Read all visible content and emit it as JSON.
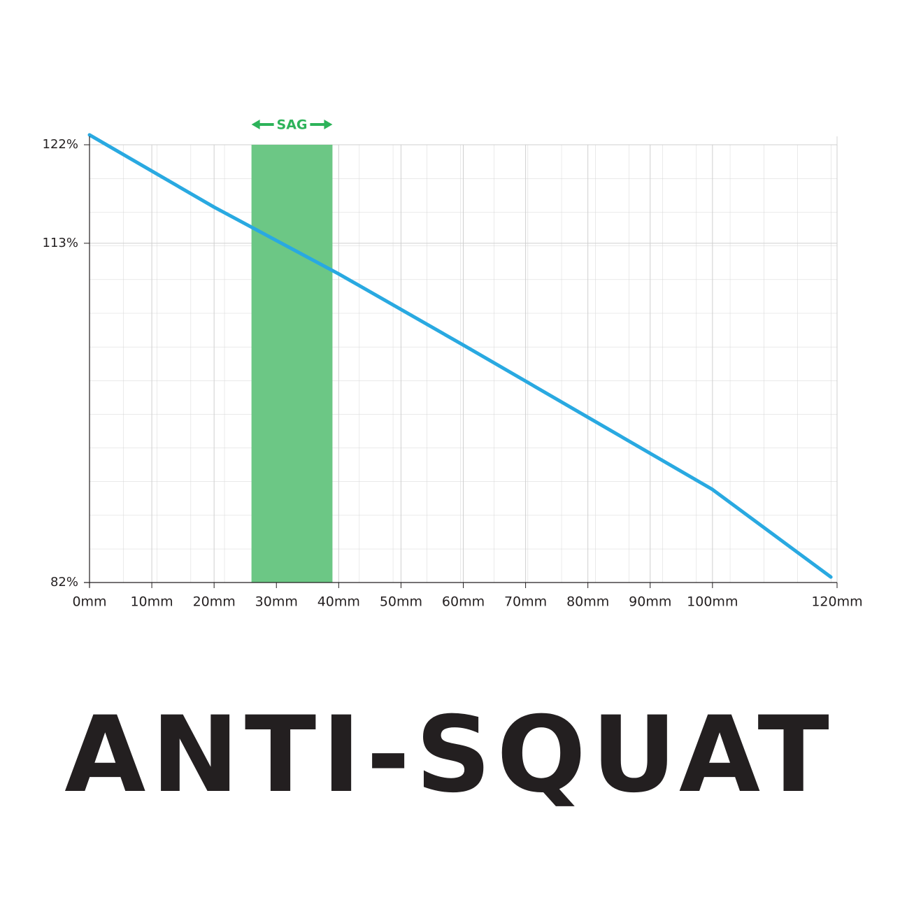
{
  "chart_data": {
    "type": "line",
    "title": "ANTI-SQUAT",
    "x": [
      0,
      20,
      40,
      60,
      80,
      100,
      119
    ],
    "series": [
      {
        "name": "Anti-squat",
        "color": "#29a9e1",
        "values": [
          122.9,
          116.3,
          110.2,
          103.7,
          97.1,
          90.5,
          82.5
        ]
      }
    ],
    "xlim": [
      0,
      120
    ],
    "xticks": [
      {
        "value": 0,
        "label": "0mm"
      },
      {
        "value": 10,
        "label": "10mm"
      },
      {
        "value": 20,
        "label": "20mm"
      },
      {
        "value": 30,
        "label": "30mm"
      },
      {
        "value": 40,
        "label": "40mm"
      },
      {
        "value": 50,
        "label": "50mm"
      },
      {
        "value": 60,
        "label": "60mm"
      },
      {
        "value": 70,
        "label": "70mm"
      },
      {
        "value": 80,
        "label": "80mm"
      },
      {
        "value": 90,
        "label": "90mm"
      },
      {
        "value": 100,
        "label": "100mm"
      },
      {
        "value": 120,
        "label": "120mm"
      }
    ],
    "ylim": [
      82,
      122
    ],
    "yticks": [
      {
        "value": 82,
        "label": "82%"
      },
      {
        "value": 113,
        "label": "113%"
      },
      {
        "value": 122,
        "label": "122%"
      }
    ],
    "grid": true,
    "band": {
      "label": "SAG",
      "x": [
        26,
        39
      ],
      "color": "#6cc785",
      "label_color": "#2db35a"
    }
  }
}
